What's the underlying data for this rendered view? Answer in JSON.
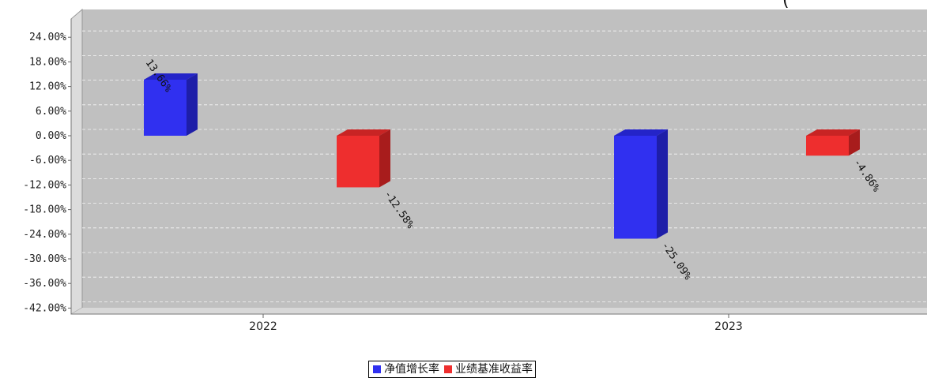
{
  "chart_data": {
    "type": "bar",
    "categories": [
      "2022",
      "2023"
    ],
    "series": [
      {
        "name": "净值增长率",
        "values": [
          13.66,
          -25.09
        ],
        "labels": [
          "13.66%",
          "-25.09%"
        ],
        "color": "#3030f0",
        "color_side": "#1e1ea8",
        "color_top": "#2424c8"
      },
      {
        "name": "业绩基准收益率",
        "values": [
          -12.58,
          -4.86
        ],
        "labels": [
          "-12.58%",
          "-4.86%"
        ],
        "color": "#ee2e2e",
        "color_side": "#a81c1c",
        "color_top": "#c82424"
      }
    ],
    "y_ticks": [
      "24.00%",
      "18.00%",
      "12.00%",
      "6.00%",
      "0.00%",
      "-6.00%",
      "-12.00%",
      "-18.00%",
      "-24.00%",
      "-30.00%",
      "-36.00%",
      "-42.00%"
    ],
    "ylim": [
      -42,
      30
    ],
    "grid": true,
    "legend_placement": "bottom-center",
    "background": "#c0c0c0"
  },
  "legend": {
    "items": [
      {
        "label": "净值增长率",
        "color": "#3030f0"
      },
      {
        "label": "业绩基准收益率",
        "color": "#ee2e2e"
      }
    ]
  }
}
